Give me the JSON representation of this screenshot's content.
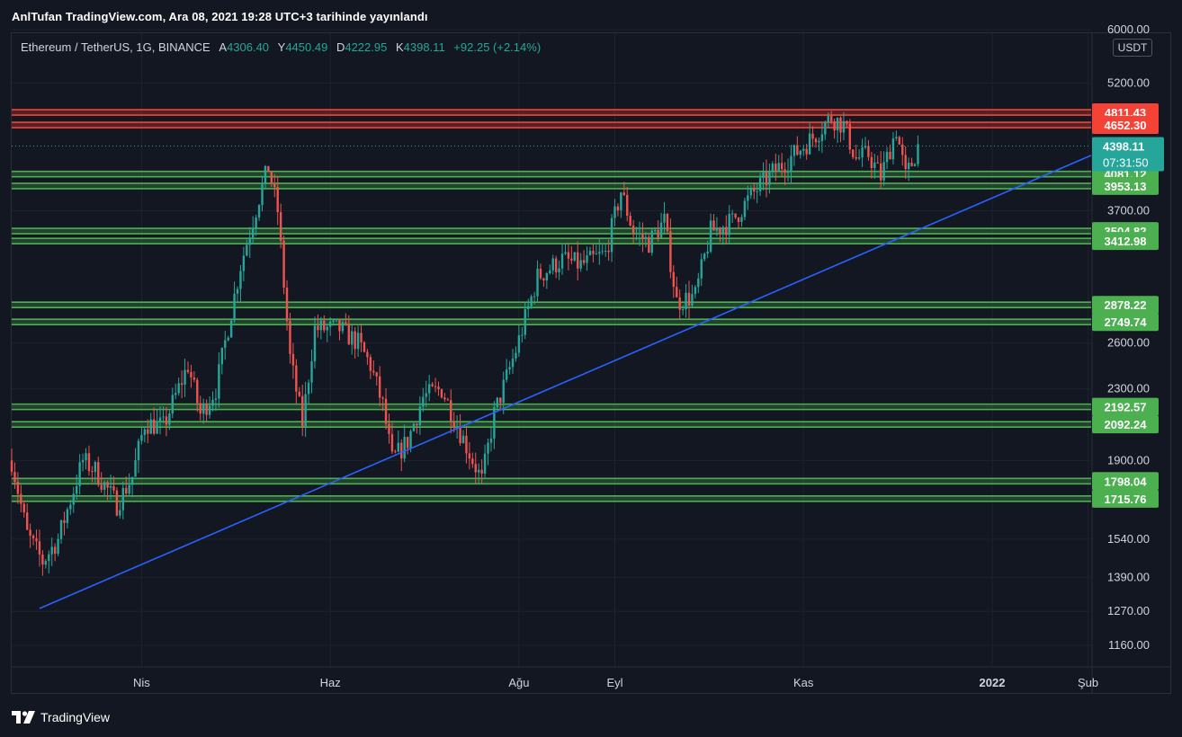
{
  "header": {
    "published_title": "AnlTufan TradingView.com, Ara 08, 2021 19:28 UTC+3 tarihinde yayınlandı"
  },
  "legend": {
    "symbol": "Ethereum / TetherUS, 1G, BINANCE",
    "open_label": "A",
    "open": "4306.40",
    "high_label": "Y",
    "high": "4450.49",
    "low_label": "D",
    "low": "4222.95",
    "close_label": "K",
    "close": "4398.11",
    "change": "+92.25 (+2.14%)"
  },
  "currency_badge": "USDT",
  "brand": {
    "name": "TradingView",
    "icon": "tradingview-logo-icon"
  },
  "colors": {
    "background": "#131722",
    "up": "#26a69a",
    "down": "#ef5350",
    "support_line": "#4caf50",
    "resistance_line": "#f44336",
    "trendline": "#2962ff",
    "last_price": "#26a69a"
  },
  "chart_data": {
    "type": "candlestick",
    "scale": "log",
    "ylim": [
      1100,
      6000
    ],
    "xlim": [
      "2021-02-18",
      "2022-02-02"
    ],
    "x_ticks": [
      {
        "label": "Nis",
        "date": "2021-04-01"
      },
      {
        "label": "Haz",
        "date": "2021-06-01"
      },
      {
        "label": "Ağu",
        "date": "2021-08-01"
      },
      {
        "label": "Eyl",
        "date": "2021-09-01"
      },
      {
        "label": "Kas",
        "date": "2021-11-01"
      },
      {
        "label": "2022",
        "date": "2022-01-01"
      },
      {
        "label": "Şub",
        "date": "2022-02-01"
      }
    ],
    "y_ticks": [
      "1160.00",
      "1270.00",
      "1390.00",
      "1540.00",
      "1900.00",
      "2300.00",
      "2600.00",
      "3700.00",
      "5200.00",
      "6000.00"
    ],
    "resistance_levels": [
      {
        "value": 4811.43,
        "label": "4811.43"
      },
      {
        "value": 4652.3,
        "label": "4652.30"
      }
    ],
    "support_levels": [
      {
        "value": 4081.12,
        "label": "4081.12"
      },
      {
        "value": 3953.13,
        "label": "3953.13"
      },
      {
        "value": 3504.82,
        "label": "3504.82"
      },
      {
        "value": 3412.98,
        "label": "3412.98"
      },
      {
        "value": 2878.22,
        "label": "2878.22"
      },
      {
        "value": 2749.74,
        "label": "2749.74"
      },
      {
        "value": 2192.57,
        "label": "2192.57"
      },
      {
        "value": 2092.24,
        "label": "2092.24"
      },
      {
        "value": 1798.04,
        "label": "1798.04"
      },
      {
        "value": 1715.76,
        "label": "1715.76"
      }
    ],
    "last_price": {
      "value": 4398.11,
      "label": "4398.11",
      "countdown": "07:31:50"
    },
    "trendline": [
      {
        "date": "2021-02-27",
        "value": 1280
      },
      {
        "date": "2022-02-02",
        "value": 4290
      }
    ],
    "price_path": [
      [
        "2021-02-18",
        1900
      ],
      [
        "2021-02-23",
        1560
      ],
      [
        "2021-02-28",
        1450
      ],
      [
        "2021-03-05",
        1540
      ],
      [
        "2021-03-13",
        1900
      ],
      [
        "2021-03-17",
        1850
      ],
      [
        "2021-03-24",
        1690
      ],
      [
        "2021-03-29",
        1820
      ],
      [
        "2021-04-02",
        2100
      ],
      [
        "2021-04-08",
        2080
      ],
      [
        "2021-04-16",
        2450
      ],
      [
        "2021-04-20",
        2150
      ],
      [
        "2021-04-25",
        2300
      ],
      [
        "2021-05-03",
        3200
      ],
      [
        "2021-05-10",
        3950
      ],
      [
        "2021-05-12",
        4150
      ],
      [
        "2021-05-15",
        3700
      ],
      [
        "2021-05-19",
        2500
      ],
      [
        "2021-05-23",
        2100
      ],
      [
        "2021-05-27",
        2700
      ],
      [
        "2021-06-04",
        2700
      ],
      [
        "2021-06-10",
        2600
      ],
      [
        "2021-06-14",
        2450
      ],
      [
        "2021-06-18",
        2200
      ],
      [
        "2021-06-21",
        1900
      ],
      [
        "2021-06-26",
        2000
      ],
      [
        "2021-07-01",
        2250
      ],
      [
        "2021-07-07",
        2300
      ],
      [
        "2021-07-13",
        2050
      ],
      [
        "2021-07-20",
        1800
      ],
      [
        "2021-07-24",
        2150
      ],
      [
        "2021-07-31",
        2550
      ],
      [
        "2021-08-07",
        3100
      ],
      [
        "2021-08-15",
        3250
      ],
      [
        "2021-08-21",
        3200
      ],
      [
        "2021-08-29",
        3300
      ],
      [
        "2021-09-03",
        3900
      ],
      [
        "2021-09-07",
        3500
      ],
      [
        "2021-09-12",
        3400
      ],
      [
        "2021-09-17",
        3600
      ],
      [
        "2021-09-21",
        2900
      ],
      [
        "2021-09-27",
        2950
      ],
      [
        "2021-10-02",
        3500
      ],
      [
        "2021-10-09",
        3600
      ],
      [
        "2021-10-15",
        3850
      ],
      [
        "2021-10-22",
        4100
      ],
      [
        "2021-10-29",
        4300
      ],
      [
        "2021-11-04",
        4500
      ],
      [
        "2021-11-10",
        4750
      ],
      [
        "2021-11-14",
        4650
      ],
      [
        "2021-11-18",
        4250
      ],
      [
        "2021-11-22",
        4300
      ],
      [
        "2021-11-26",
        4050
      ],
      [
        "2021-12-01",
        4600
      ],
      [
        "2021-12-04",
        4050
      ],
      [
        "2021-12-06",
        4200
      ],
      [
        "2021-12-08",
        4398
      ]
    ]
  }
}
